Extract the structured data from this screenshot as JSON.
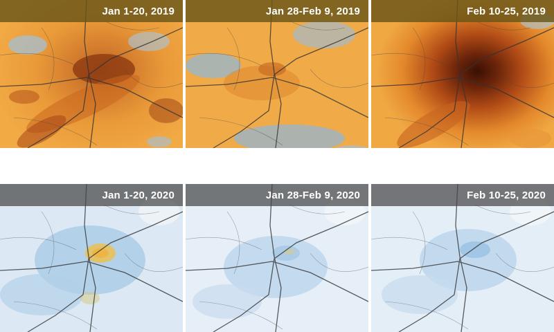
{
  "panels": {
    "row_2019": [
      {
        "label": "Jan 1-20, 2019"
      },
      {
        "label": "Jan 28-Feb 9, 2019"
      },
      {
        "label": "Feb 10-25, 2019"
      }
    ],
    "row_2020": [
      {
        "label": "Jan 1-20, 2020"
      },
      {
        "label": "Jan 28-Feb 9, 2020"
      },
      {
        "label": "Feb 10-25, 2020"
      }
    ]
  },
  "colors": {
    "high_concentration": "#f0a640",
    "very_high_concentration": "#5a1e0a",
    "low_concentration": "#c8dff0",
    "clean_air": "#e9f1f8",
    "road_lines": "#333333"
  }
}
